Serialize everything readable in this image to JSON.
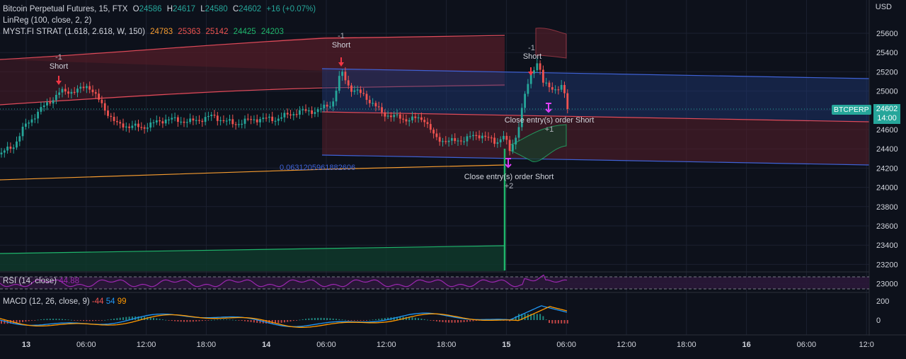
{
  "header": {
    "symbol_line": {
      "title": "Bitcoin Perpetual Futures, 15, FTX",
      "o_label": "O",
      "o": "24586",
      "h_label": "H",
      "h": "24617",
      "l_label": "L",
      "l": "24580",
      "c_label": "C",
      "c": "24602",
      "change": "+16 (+0.07%)"
    },
    "linreg": "LinReg (100, close, 2, 2)",
    "myst": {
      "label": "MYST.FI STRAT (1.618, 2.618, W, 150)",
      "v1": "24783",
      "v2": "25363",
      "v3": "25142",
      "v4": "24425",
      "v5": "24203"
    }
  },
  "currency": "USD",
  "price_axis": {
    "ticks": [
      "25600",
      "25400",
      "25200",
      "25000",
      "24800",
      "24600",
      "24400",
      "24200",
      "24000",
      "23800",
      "23600",
      "23400",
      "23200",
      "23000"
    ]
  },
  "last_price": {
    "symbol": "BTCPERP",
    "value": "24602",
    "countdown": "14:00"
  },
  "time_axis": {
    "labels": [
      "13",
      "06:00",
      "12:00",
      "18:00",
      "14",
      "06:00",
      "12:00",
      "18:00",
      "15",
      "06:00",
      "12:00",
      "18:00",
      "16",
      "06:00",
      "12:0"
    ],
    "bold": [
      "13",
      "14",
      "15",
      "16"
    ]
  },
  "annotations": {
    "short1_count": "-1",
    "short1_label": "Short",
    "short2_count": "-1",
    "short2_label": "Short",
    "short3_count": "-1",
    "short3_label": "Short",
    "close1": "Close entry(s) order Short",
    "close1_count": "+1",
    "close2": "Close entry(s) order Short",
    "close2_count": "+2",
    "fib_value": "0.0631205961882606"
  },
  "rsi": {
    "label": "RSI (14, close)",
    "value": "44.88"
  },
  "macd": {
    "label": "MACD (12, 26, close, 9)",
    "hist": "-44",
    "macd": "54",
    "signal": "99",
    "ticks": [
      "200",
      "0"
    ]
  },
  "colors": {
    "background": "#0d111b",
    "up": "#26a69a",
    "down": "#ef5350",
    "regression_channel": "#3f62d6",
    "myst_band": "#e04b5a",
    "orange": "#f59b2f",
    "green_band": "#1fb56b",
    "rsi": "#9c27b0",
    "macd_line": "#2196f3",
    "signal_line": "#ff9800"
  }
}
